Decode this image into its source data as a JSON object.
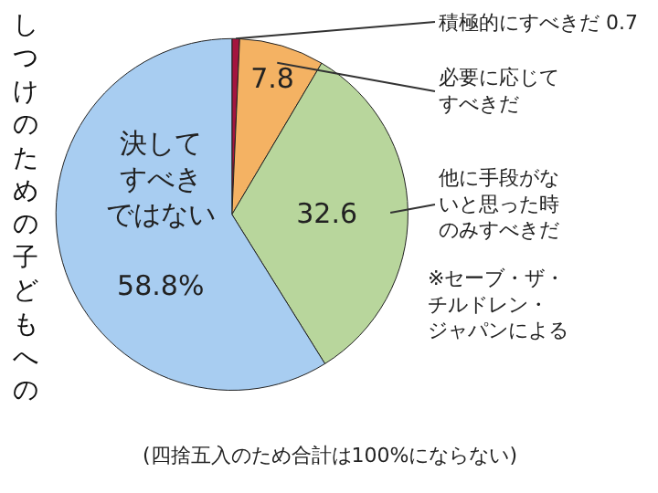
{
  "chart_data": {
    "type": "pie",
    "title": "しつけのための子どもへの",
    "categories": [
      "積極的にすべきだ",
      "必要に応じてすべきだ",
      "他に手段がないと思った時のみすべきだ",
      "決してすべきではない"
    ],
    "values": [
      0.7,
      7.8,
      32.6,
      58.8
    ],
    "value_labels": [
      "0.7",
      "7.8",
      "32.6",
      "58.8%"
    ],
    "colors": [
      "#a3153f",
      "#f4b263",
      "#b8d69c",
      "#a8cdf1"
    ],
    "annotations": [
      "※セーブ・ザ・チルドレン・ジャパンによる",
      "(四捨五入のため合計は100%にならない)"
    ],
    "legend": false
  }
}
